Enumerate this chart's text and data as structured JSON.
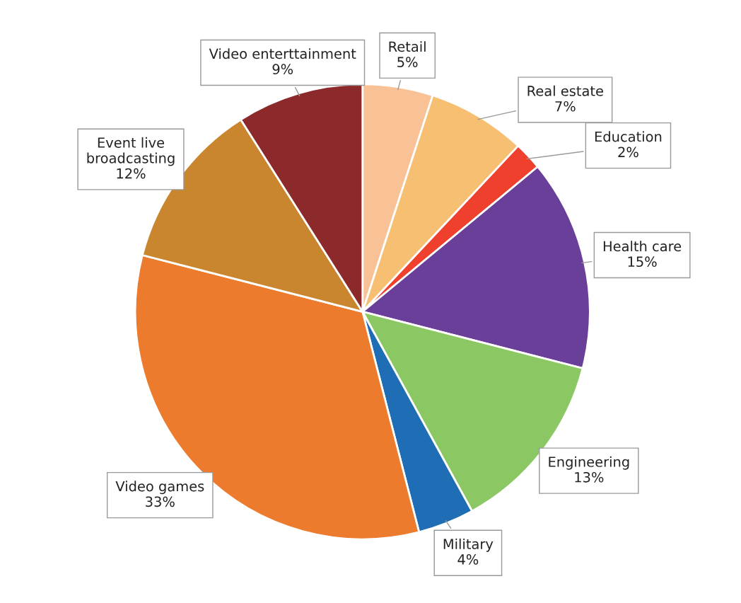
{
  "chart_data": {
    "type": "pie",
    "categories": [
      "Retail",
      "Real estate",
      "Education",
      "Health care",
      "Engineering",
      "Military",
      "Video games",
      "Event live\nbroadcasting",
      "Video enterttainment"
    ],
    "values": [
      5,
      7,
      2,
      15,
      13,
      4,
      33,
      12,
      9
    ],
    "value_labels": [
      "5%",
      "7%",
      "2%",
      "15%",
      "13%",
      "4%",
      "33%",
      "12%",
      "9%"
    ],
    "colors": [
      "#f9c196",
      "#f6bf71",
      "#ee402d",
      "#6a3f99",
      "#8bc863",
      "#1f6eb5",
      "#ed7b2d",
      "#c9862f",
      "#8c2a2b"
    ],
    "legend": false
  }
}
